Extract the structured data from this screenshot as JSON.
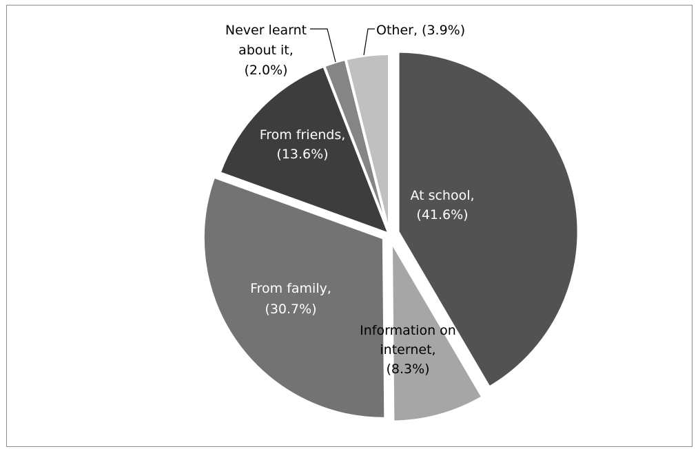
{
  "chart_data": {
    "type": "pie",
    "title": "",
    "start_angle_deg": 0,
    "direction": "clockwise",
    "slices": [
      {
        "label": "At school,",
        "pct_text": "(41.6%)",
        "value": 41.6,
        "color": "#525252",
        "exploded": true
      },
      {
        "label": "Information on internet,",
        "label_lines": [
          "Information on",
          "internet,"
        ],
        "pct_text": "(8.3%)",
        "value": 8.3,
        "color": "#a6a6a6",
        "exploded": true
      },
      {
        "label": "From family,",
        "pct_text": "(30.7%)",
        "value": 30.7,
        "color": "#737373",
        "exploded": true
      },
      {
        "label": "From friends,",
        "pct_text": "(13.6%)",
        "value": 13.6,
        "color": "#3d3d3d",
        "exploded": false
      },
      {
        "label": "Never learnt about it,",
        "label_lines": [
          "Never learnt",
          "about it,"
        ],
        "pct_text": "(2.0%)",
        "value": 2.0,
        "color": "#858585",
        "exploded": false
      },
      {
        "label": "Other,",
        "pct_text": "(3.9%)",
        "value": 3.9,
        "color": "#c0c0c0",
        "exploded": false
      }
    ]
  }
}
